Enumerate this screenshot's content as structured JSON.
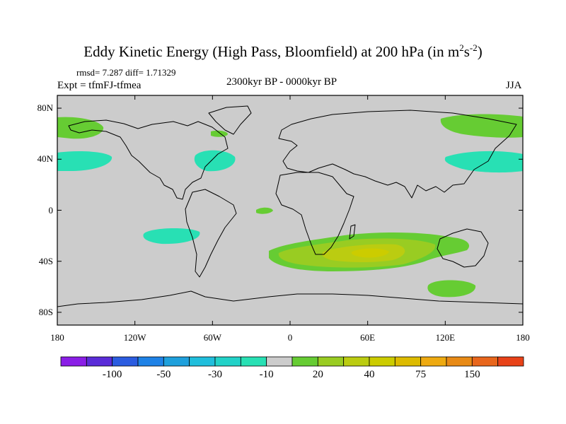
{
  "title_main": "Eddy Kinetic Energy (High Pass, Bloomfield) at 200 hPa (in m",
  "title_sup1": "2",
  "title_mid": "s",
  "title_sup2": "-2",
  "title_end": ")",
  "stats_text": "rmsd= 7.287 diff= 1.71329",
  "expt_text": "Expt = tfmFJ-tfmea",
  "period_text": "2300kyr BP - 0000kyr BP",
  "season_text": "JJA",
  "axes": {
    "y_ticks": [
      {
        "label": "80N",
        "lat": 80
      },
      {
        "label": "40N",
        "lat": 40
      },
      {
        "label": "0",
        "lat": 0
      },
      {
        "label": "40S",
        "lat": -40
      },
      {
        "label": "80S",
        "lat": -80
      }
    ],
    "x_ticks": [
      {
        "label": "180",
        "lon": -180
      },
      {
        "label": "120W",
        "lon": -120
      },
      {
        "label": "60W",
        "lon": -60
      },
      {
        "label": "0",
        "lon": 0
      },
      {
        "label": "60E",
        "lon": 60
      },
      {
        "label": "120E",
        "lon": 120
      },
      {
        "label": "180",
        "lon": 180
      }
    ]
  },
  "colorbar": {
    "colors": [
      "#8a1ee6",
      "#5a2cd8",
      "#2b5ce0",
      "#1e82e6",
      "#1ea0dc",
      "#20bedc",
      "#22d2c8",
      "#28e0b4",
      "#cccccc",
      "#66cc33",
      "#99cc22",
      "#bbcc11",
      "#cccc00",
      "#ddbb00",
      "#eeaa11",
      "#e88a16",
      "#e8661c",
      "#e84218"
    ],
    "labels": [
      {
        "text": "-100",
        "after_box": 2
      },
      {
        "text": "-50",
        "after_box": 4
      },
      {
        "text": "-30",
        "after_box": 6
      },
      {
        "text": "-10",
        "after_box": 8
      },
      {
        "text": "20",
        "after_box": 10
      },
      {
        "text": "40",
        "after_box": 12
      },
      {
        "text": "75",
        "after_box": 14
      },
      {
        "text": "150",
        "after_box": 16
      }
    ]
  }
}
